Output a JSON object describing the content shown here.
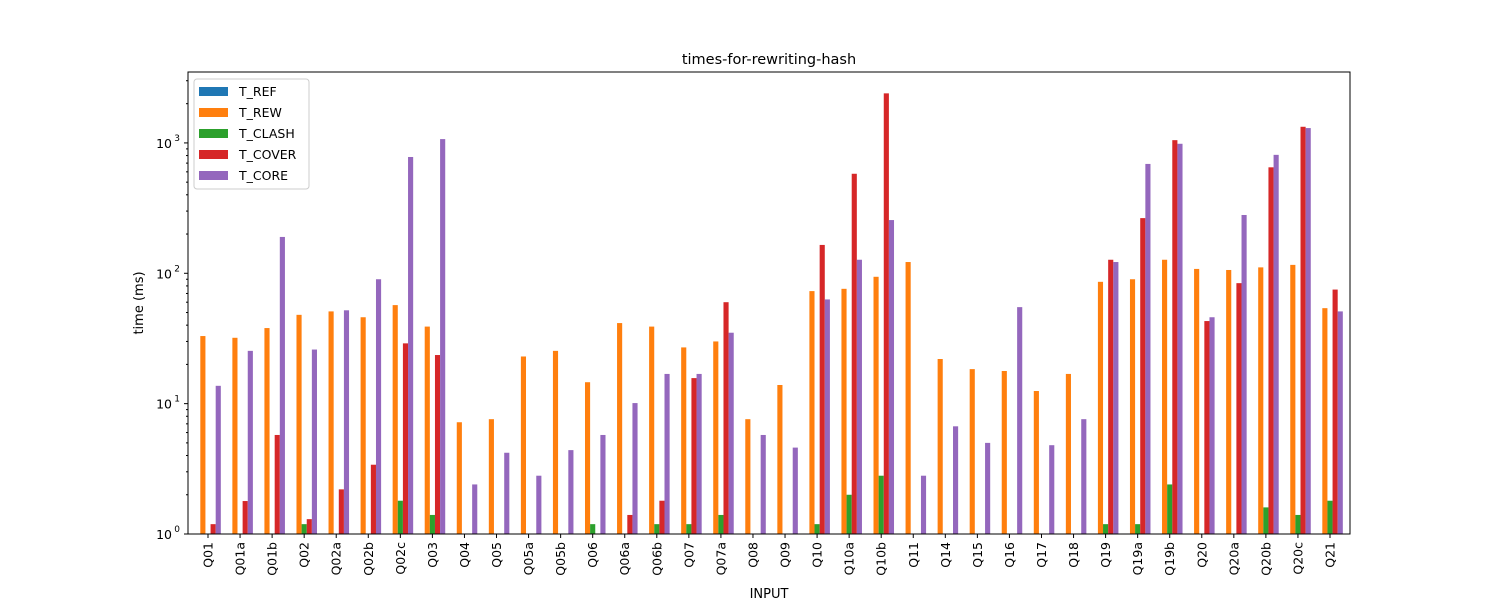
{
  "chart_data": {
    "type": "bar",
    "title": "times-for-rewriting-hash",
    "xlabel": "INPUT",
    "ylabel": "time (ms)",
    "yscale": "log",
    "ylim": [
      1,
      3500
    ],
    "yticks": [
      1,
      10,
      100,
      1000
    ],
    "ytick_labels": [
      "10",
      "10",
      "10",
      "10"
    ],
    "ytick_exponents": [
      "0",
      "1",
      "2",
      "3"
    ],
    "legend_position": "top-left",
    "categories": [
      "Q01",
      "Q01a",
      "Q01b",
      "Q02",
      "Q02a",
      "Q02b",
      "Q02c",
      "Q03",
      "Q04",
      "Q05",
      "Q05a",
      "Q05b",
      "Q06",
      "Q06a",
      "Q06b",
      "Q07",
      "Q07a",
      "Q08",
      "Q09",
      "Q10",
      "Q10a",
      "Q10b",
      "Q11",
      "Q14",
      "Q15",
      "Q16",
      "Q17",
      "Q18",
      "Q19",
      "Q19a",
      "Q19b",
      "Q20",
      "Q20a",
      "Q20b",
      "Q20c",
      "Q21"
    ],
    "series": [
      {
        "name": "T_REF",
        "color": "#1f77b4",
        "values": [
          null,
          null,
          null,
          null,
          null,
          null,
          null,
          null,
          null,
          null,
          null,
          null,
          null,
          null,
          null,
          null,
          null,
          null,
          null,
          null,
          null,
          null,
          null,
          null,
          null,
          null,
          null,
          null,
          null,
          null,
          null,
          null,
          null,
          null,
          null,
          null
        ]
      },
      {
        "name": "T_REW",
        "color": "#ff7f0e",
        "values": [
          33,
          32,
          38,
          48,
          51,
          46,
          57,
          39,
          7.2,
          7.6,
          23,
          25.4,
          14.6,
          41.5,
          39,
          27,
          30,
          7.6,
          13.9,
          73,
          76,
          94,
          122,
          22,
          18.4,
          17.8,
          12.5,
          16.9,
          86,
          90,
          127,
          108,
          106,
          111,
          116,
          54
        ]
      },
      {
        "name": "T_CLASH",
        "color": "#2ca02c",
        "values": [
          null,
          null,
          null,
          1.19,
          null,
          null,
          1.8,
          1.4,
          null,
          null,
          null,
          null,
          1.19,
          null,
          1.19,
          1.19,
          1.4,
          null,
          null,
          1.19,
          2.0,
          2.8,
          null,
          null,
          null,
          null,
          null,
          null,
          1.19,
          1.19,
          2.4,
          null,
          null,
          1.6,
          1.4,
          1.8
        ]
      },
      {
        "name": "T_COVER",
        "color": "#d62728",
        "values": [
          1.19,
          1.79,
          5.75,
          1.3,
          2.2,
          3.4,
          29,
          23.6,
          null,
          null,
          null,
          null,
          null,
          1.4,
          1.8,
          15.7,
          60,
          null,
          null,
          165,
          580,
          2400,
          null,
          null,
          null,
          null,
          null,
          null,
          127,
          265,
          1050,
          43,
          84,
          650,
          1330,
          75
        ]
      },
      {
        "name": "T_CORE",
        "color": "#9467bd",
        "values": [
          13.7,
          25.4,
          190,
          26,
          52,
          90,
          780,
          1070,
          2.4,
          4.2,
          2.8,
          4.4,
          5.75,
          10.1,
          16.9,
          16.9,
          35,
          5.75,
          4.6,
          63,
          127,
          256,
          2.8,
          6.7,
          5.0,
          55,
          4.8,
          7.6,
          122,
          690,
          985,
          46,
          280,
          810,
          1300,
          51
        ]
      }
    ]
  }
}
